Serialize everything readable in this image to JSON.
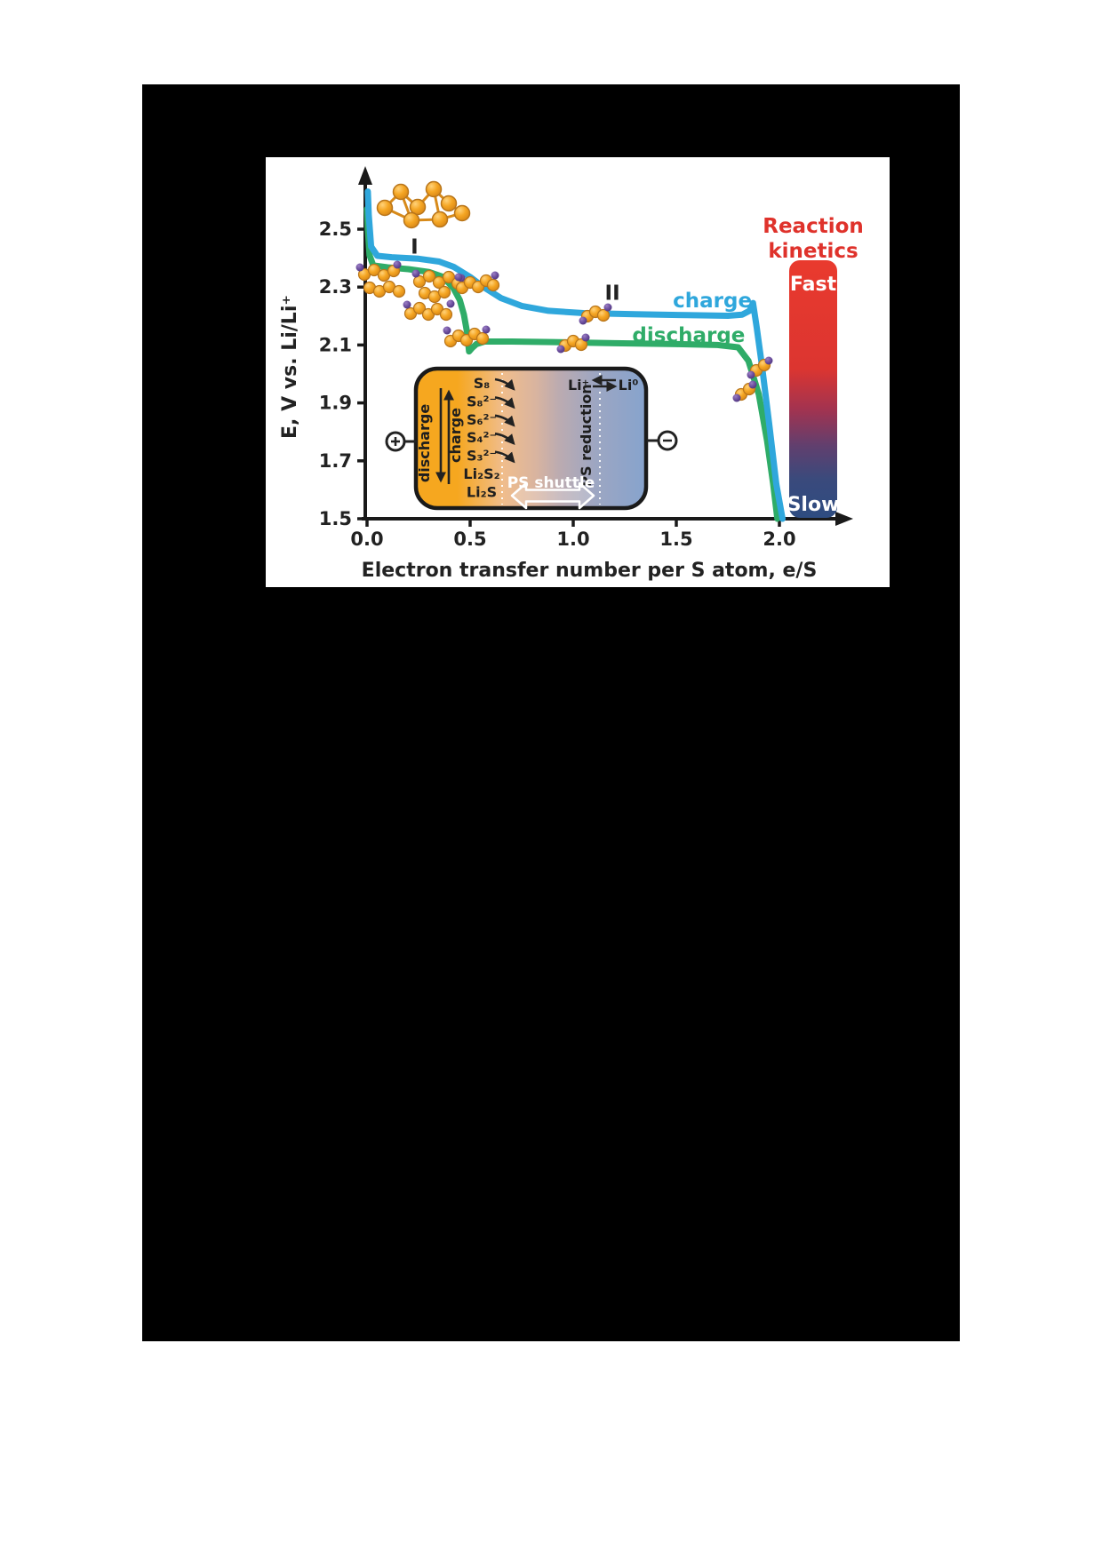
{
  "chart_data": {
    "type": "line",
    "title": "",
    "xlabel": "Electron transfer number per S atom, e/S",
    "ylabel": "E, V vs. Li/Li⁺",
    "xlim": [
      0,
      2.35
    ],
    "ylim": [
      1.5,
      2.72
    ],
    "grid": false,
    "x_ticks": [
      "0.0",
      "0.5",
      "1.0",
      "1.5",
      "2.0"
    ],
    "y_ticks": [
      "2.5",
      "2.3",
      "2.1",
      "1.9",
      "1.7",
      "1.5"
    ],
    "series": [
      {
        "name": "discharge",
        "color": "#2FAC68",
        "x": [
          0.0,
          0.004,
          0.012,
          0.03,
          0.1,
          0.2,
          0.3,
          0.37,
          0.42,
          0.45,
          0.47,
          0.485,
          0.495,
          0.51,
          0.53,
          0.57,
          0.7,
          0.9,
          1.2,
          1.5,
          1.7,
          1.8,
          1.85,
          1.9,
          1.94,
          1.97,
          1.99
        ],
        "y": [
          2.57,
          2.5,
          2.41,
          2.375,
          2.368,
          2.362,
          2.352,
          2.335,
          2.295,
          2.255,
          2.205,
          2.145,
          2.078,
          2.09,
          2.103,
          2.112,
          2.112,
          2.11,
          2.106,
          2.103,
          2.1,
          2.092,
          2.045,
          1.93,
          1.77,
          1.62,
          1.5
        ]
      },
      {
        "name": "charge",
        "color": "#2FA7DC",
        "x": [
          0.004,
          0.008,
          0.02,
          0.05,
          0.12,
          0.25,
          0.35,
          0.42,
          0.5,
          0.57,
          0.65,
          0.75,
          0.88,
          1.05,
          1.3,
          1.55,
          1.75,
          1.82,
          1.855,
          1.872,
          1.89,
          1.915,
          1.95,
          1.985,
          2.015
        ],
        "y": [
          2.63,
          2.55,
          2.44,
          2.408,
          2.403,
          2.398,
          2.388,
          2.37,
          2.335,
          2.298,
          2.262,
          2.235,
          2.218,
          2.21,
          2.206,
          2.203,
          2.201,
          2.205,
          2.218,
          2.245,
          2.16,
          2.03,
          1.83,
          1.62,
          1.5
        ]
      }
    ],
    "annotations": [
      {
        "label": "I",
        "x": 0.23,
        "y": 2.44,
        "color": "#222222"
      },
      {
        "label": "II",
        "x": 1.19,
        "y": 2.28,
        "color": "#222222"
      },
      {
        "label": "charge",
        "x": 1.675,
        "y": 2.255,
        "color": "#2FA7DC"
      },
      {
        "label": "discharge",
        "x": 1.56,
        "y": 2.135,
        "color": "#2FAC68"
      }
    ]
  },
  "colorbar": {
    "title_line1": "Reaction",
    "title_line2": "kinetics",
    "fast": "Fast",
    "slow": "Slow",
    "top_color": "#E93A2E",
    "bottom_color": "#2E4C81"
  },
  "inset": {
    "discharge_label": "discharge",
    "charge_label": "charge",
    "species": [
      "S₈",
      "S₈²⁻",
      "S₆²⁻",
      "S₄²⁻",
      "S₃²⁻",
      "Li₂S₂",
      "Li₂S"
    ],
    "li_plus": "Li⁺",
    "li_zero": "Li⁰",
    "ps_reduction": "PS reduction",
    "ps_shuttle": "PS shuttle"
  },
  "icons": {
    "positive_electrode": "plus-circle",
    "negative_electrode": "minus-circle",
    "molecules": [
      "s8-crown-ring",
      "polysulfide-chain",
      "polysulfide-chain",
      "polysulfide-chain",
      "polysulfide-chain",
      "polysulfide-chain",
      "short-polysulfide-chain",
      "short-polysulfide-chain",
      "li2s-cluster",
      "li2s-cluster"
    ]
  },
  "curve_colors": {
    "charge": "#2FA7DC",
    "discharge": "#2FAC68"
  }
}
